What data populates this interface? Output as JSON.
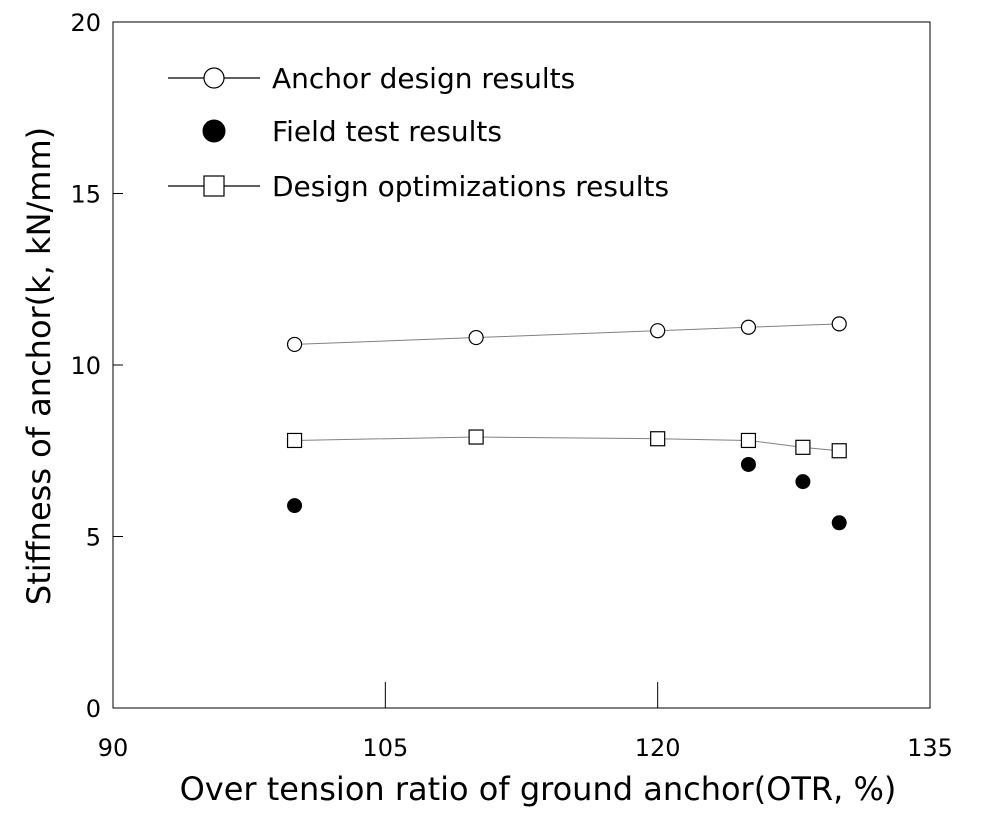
{
  "chart_data": {
    "type": "line",
    "title": "",
    "xlabel": "Over tension ratio of ground anchor(OTR, %)",
    "ylabel": "Stiffness of anchor(k, kN/mm)",
    "xlim": [
      90,
      135
    ],
    "ylim": [
      0,
      20
    ],
    "xticks": [
      90,
      105,
      120,
      135
    ],
    "yticks": [
      0,
      5,
      10,
      15,
      20
    ],
    "grid": false,
    "legend_position": "top-left",
    "series": [
      {
        "name": "Anchor design results",
        "marker": "open-circle",
        "line": true,
        "x": [
          100,
          110,
          120,
          125,
          130
        ],
        "y": [
          10.6,
          10.8,
          11.0,
          11.1,
          11.2
        ]
      },
      {
        "name": "Field test results",
        "marker": "filled-circle",
        "line": false,
        "x": [
          100,
          125,
          128,
          130
        ],
        "y": [
          5.9,
          7.1,
          6.6,
          5.4
        ]
      },
      {
        "name": "Design optimizations results",
        "marker": "open-square",
        "line": true,
        "x": [
          100,
          110,
          120,
          125,
          128,
          130
        ],
        "y": [
          7.8,
          7.9,
          7.85,
          7.8,
          7.6,
          7.5
        ]
      }
    ],
    "colors": {
      "line": "#808080",
      "marker": "#000000",
      "axis": "#000000"
    }
  }
}
